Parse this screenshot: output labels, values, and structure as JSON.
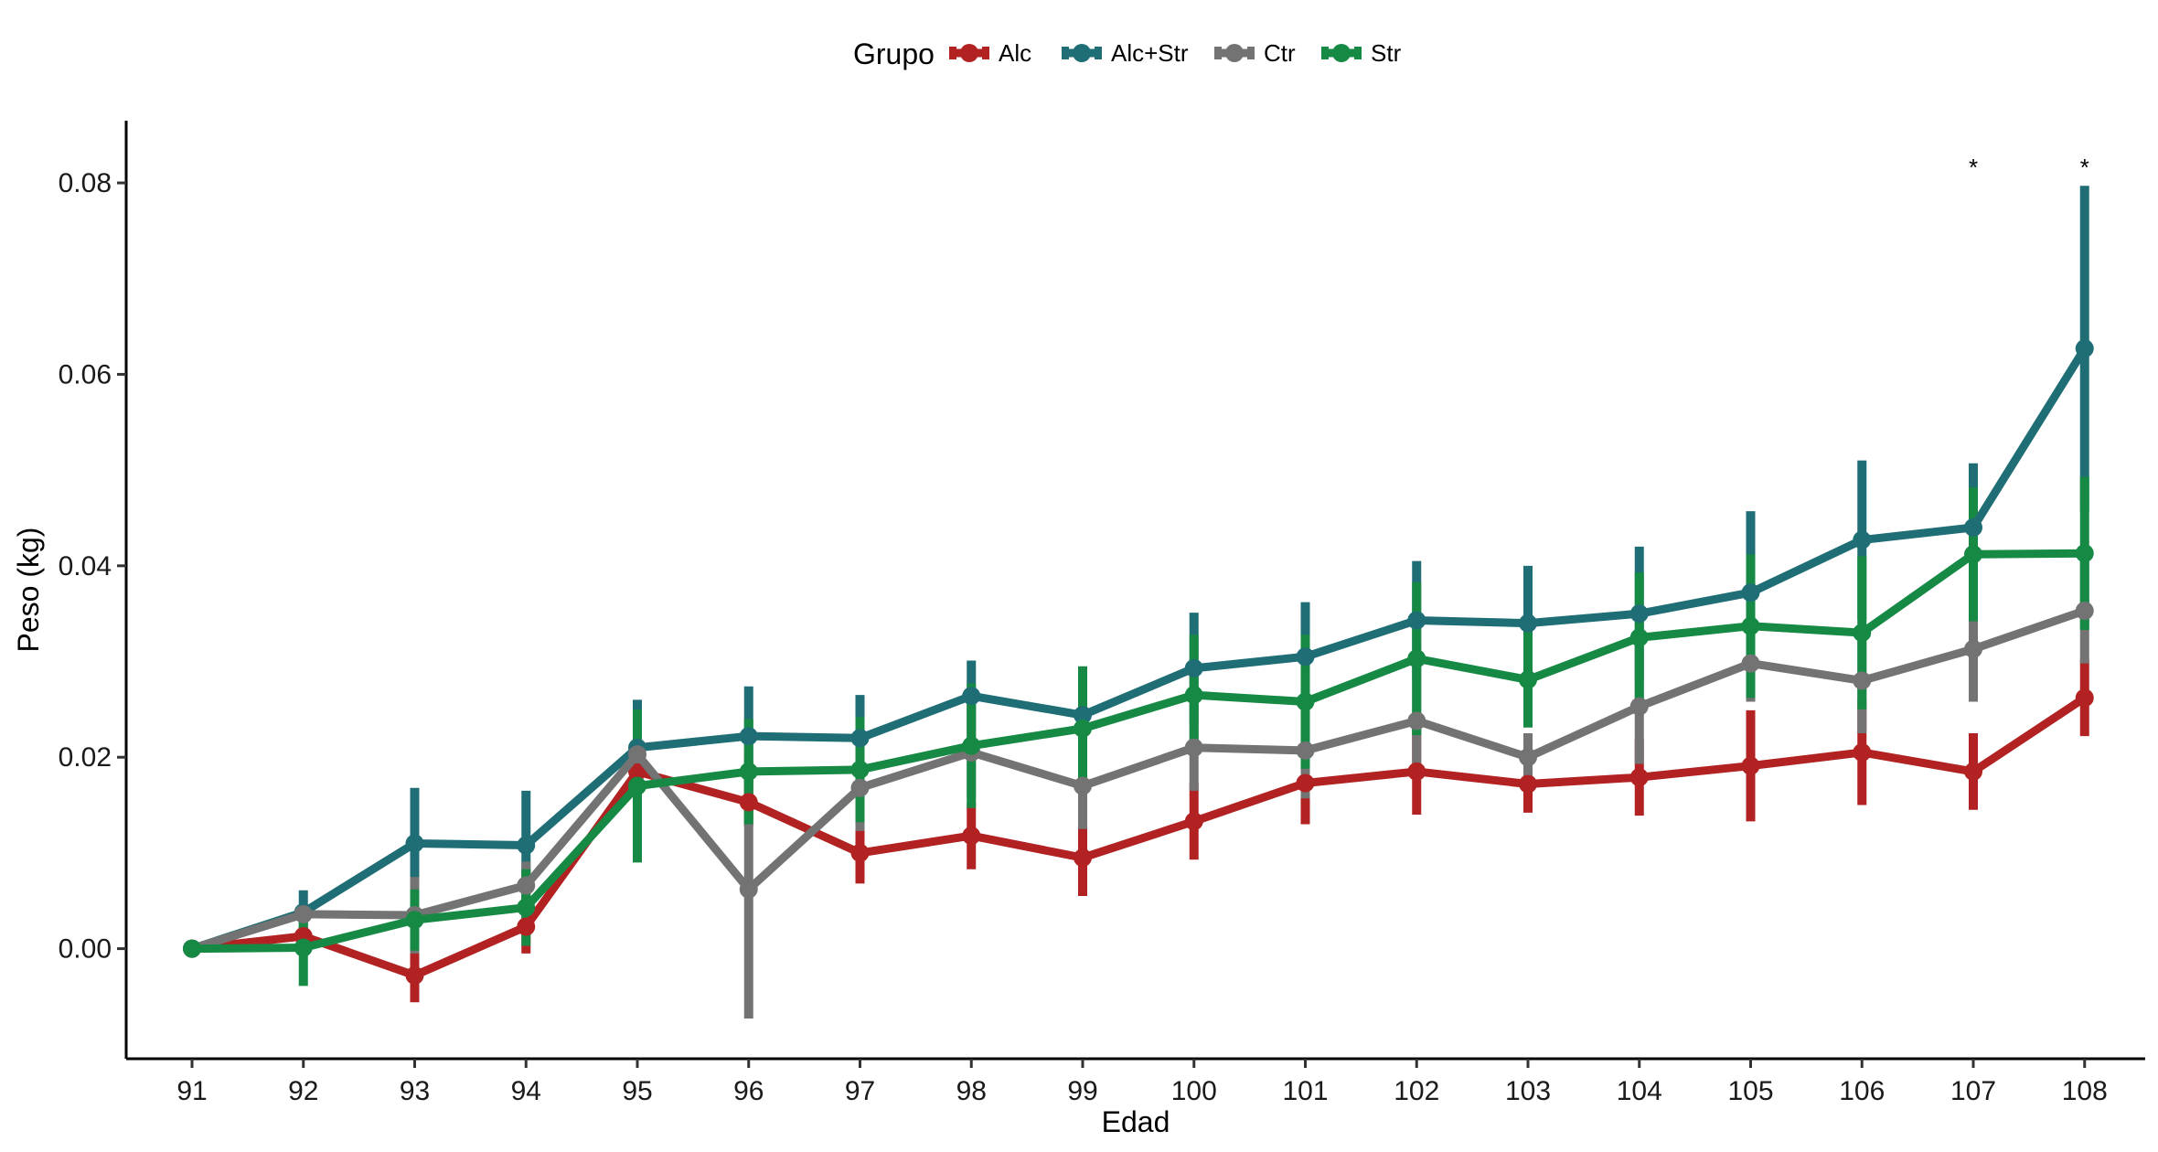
{
  "chart_data": {
    "type": "line",
    "xlabel": "Edad",
    "ylabel": "Peso (kg)",
    "ylim": [
      -0.0115,
      0.0865
    ],
    "grid": false,
    "legend": {
      "title": "Grupo",
      "position": "top"
    },
    "x": [
      91,
      92,
      93,
      94,
      95,
      96,
      97,
      98,
      99,
      100,
      101,
      102,
      103,
      104,
      105,
      106,
      107,
      108
    ],
    "yticks": [
      {
        "value": 0.0,
        "label": "0.00"
      },
      {
        "value": 0.02,
        "label": "0.02"
      },
      {
        "value": 0.04,
        "label": "0.04"
      },
      {
        "value": 0.06,
        "label": "0.06"
      },
      {
        "value": 0.08,
        "label": "0.08"
      }
    ],
    "annotations": [
      {
        "x": 107,
        "y": 0.0825,
        "text": "*"
      },
      {
        "x": 108,
        "y": 0.0825,
        "text": "*"
      }
    ],
    "series": [
      {
        "name": "Alc",
        "color": "#B22222",
        "values": [
          0.0,
          0.0013,
          -0.0028,
          0.0023,
          0.0185,
          0.0153,
          0.01,
          0.0118,
          0.0095,
          0.0133,
          0.0173,
          0.0185,
          0.0172,
          0.0179,
          0.0191,
          0.0205,
          0.0185,
          0.0262
        ],
        "err": [
          0.0,
          0.001,
          0.0028,
          0.0028,
          0.0025,
          0.0025,
          0.0032,
          0.0035,
          0.004,
          0.004,
          0.0043,
          0.0045,
          0.003,
          0.004,
          0.0058,
          0.0055,
          0.004,
          0.004
        ]
      },
      {
        "name": "Alc+Str",
        "color": "#1F6E75",
        "values": [
          0.0,
          0.0038,
          0.011,
          0.0108,
          0.021,
          0.0222,
          0.022,
          0.0264,
          0.0244,
          0.0293,
          0.0305,
          0.0343,
          0.034,
          0.035,
          0.0372,
          0.0427,
          0.044,
          0.0627
        ],
        "err": [
          0.0,
          0.0023,
          0.0058,
          0.0057,
          0.005,
          0.0052,
          0.0045,
          0.0037,
          0.005,
          0.0058,
          0.0057,
          0.0062,
          0.006,
          0.007,
          0.0085,
          0.0083,
          0.0067,
          0.017
        ]
      },
      {
        "name": "Ctr",
        "color": "#737373",
        "values": [
          0.0,
          0.0036,
          0.0035,
          0.0066,
          0.0203,
          0.0062,
          0.0168,
          0.0205,
          0.017,
          0.021,
          0.0207,
          0.0238,
          0.02,
          0.0253,
          0.0298,
          0.028,
          0.0313,
          0.0353
        ],
        "err": [
          0.0,
          0.001,
          0.004,
          0.0025,
          0.0025,
          0.0135,
          0.0045,
          0.0048,
          0.0045,
          0.0045,
          0.005,
          0.0045,
          0.0025,
          0.006,
          0.004,
          0.0055,
          0.0055,
          0.0055
        ]
      },
      {
        "name": "Str",
        "color": "#168A45",
        "values": [
          0.0,
          0.0001,
          0.003,
          0.0043,
          0.017,
          0.0185,
          0.0187,
          0.0212,
          0.023,
          0.0265,
          0.0258,
          0.0303,
          0.0281,
          0.0325,
          0.0337,
          0.033,
          0.0412,
          0.0413
        ],
        "err": [
          0.0,
          0.004,
          0.0032,
          0.004,
          0.008,
          0.0055,
          0.0055,
          0.0065,
          0.0065,
          0.0063,
          0.007,
          0.008,
          0.005,
          0.0068,
          0.0075,
          0.008,
          0.007,
          0.008
        ]
      }
    ]
  }
}
